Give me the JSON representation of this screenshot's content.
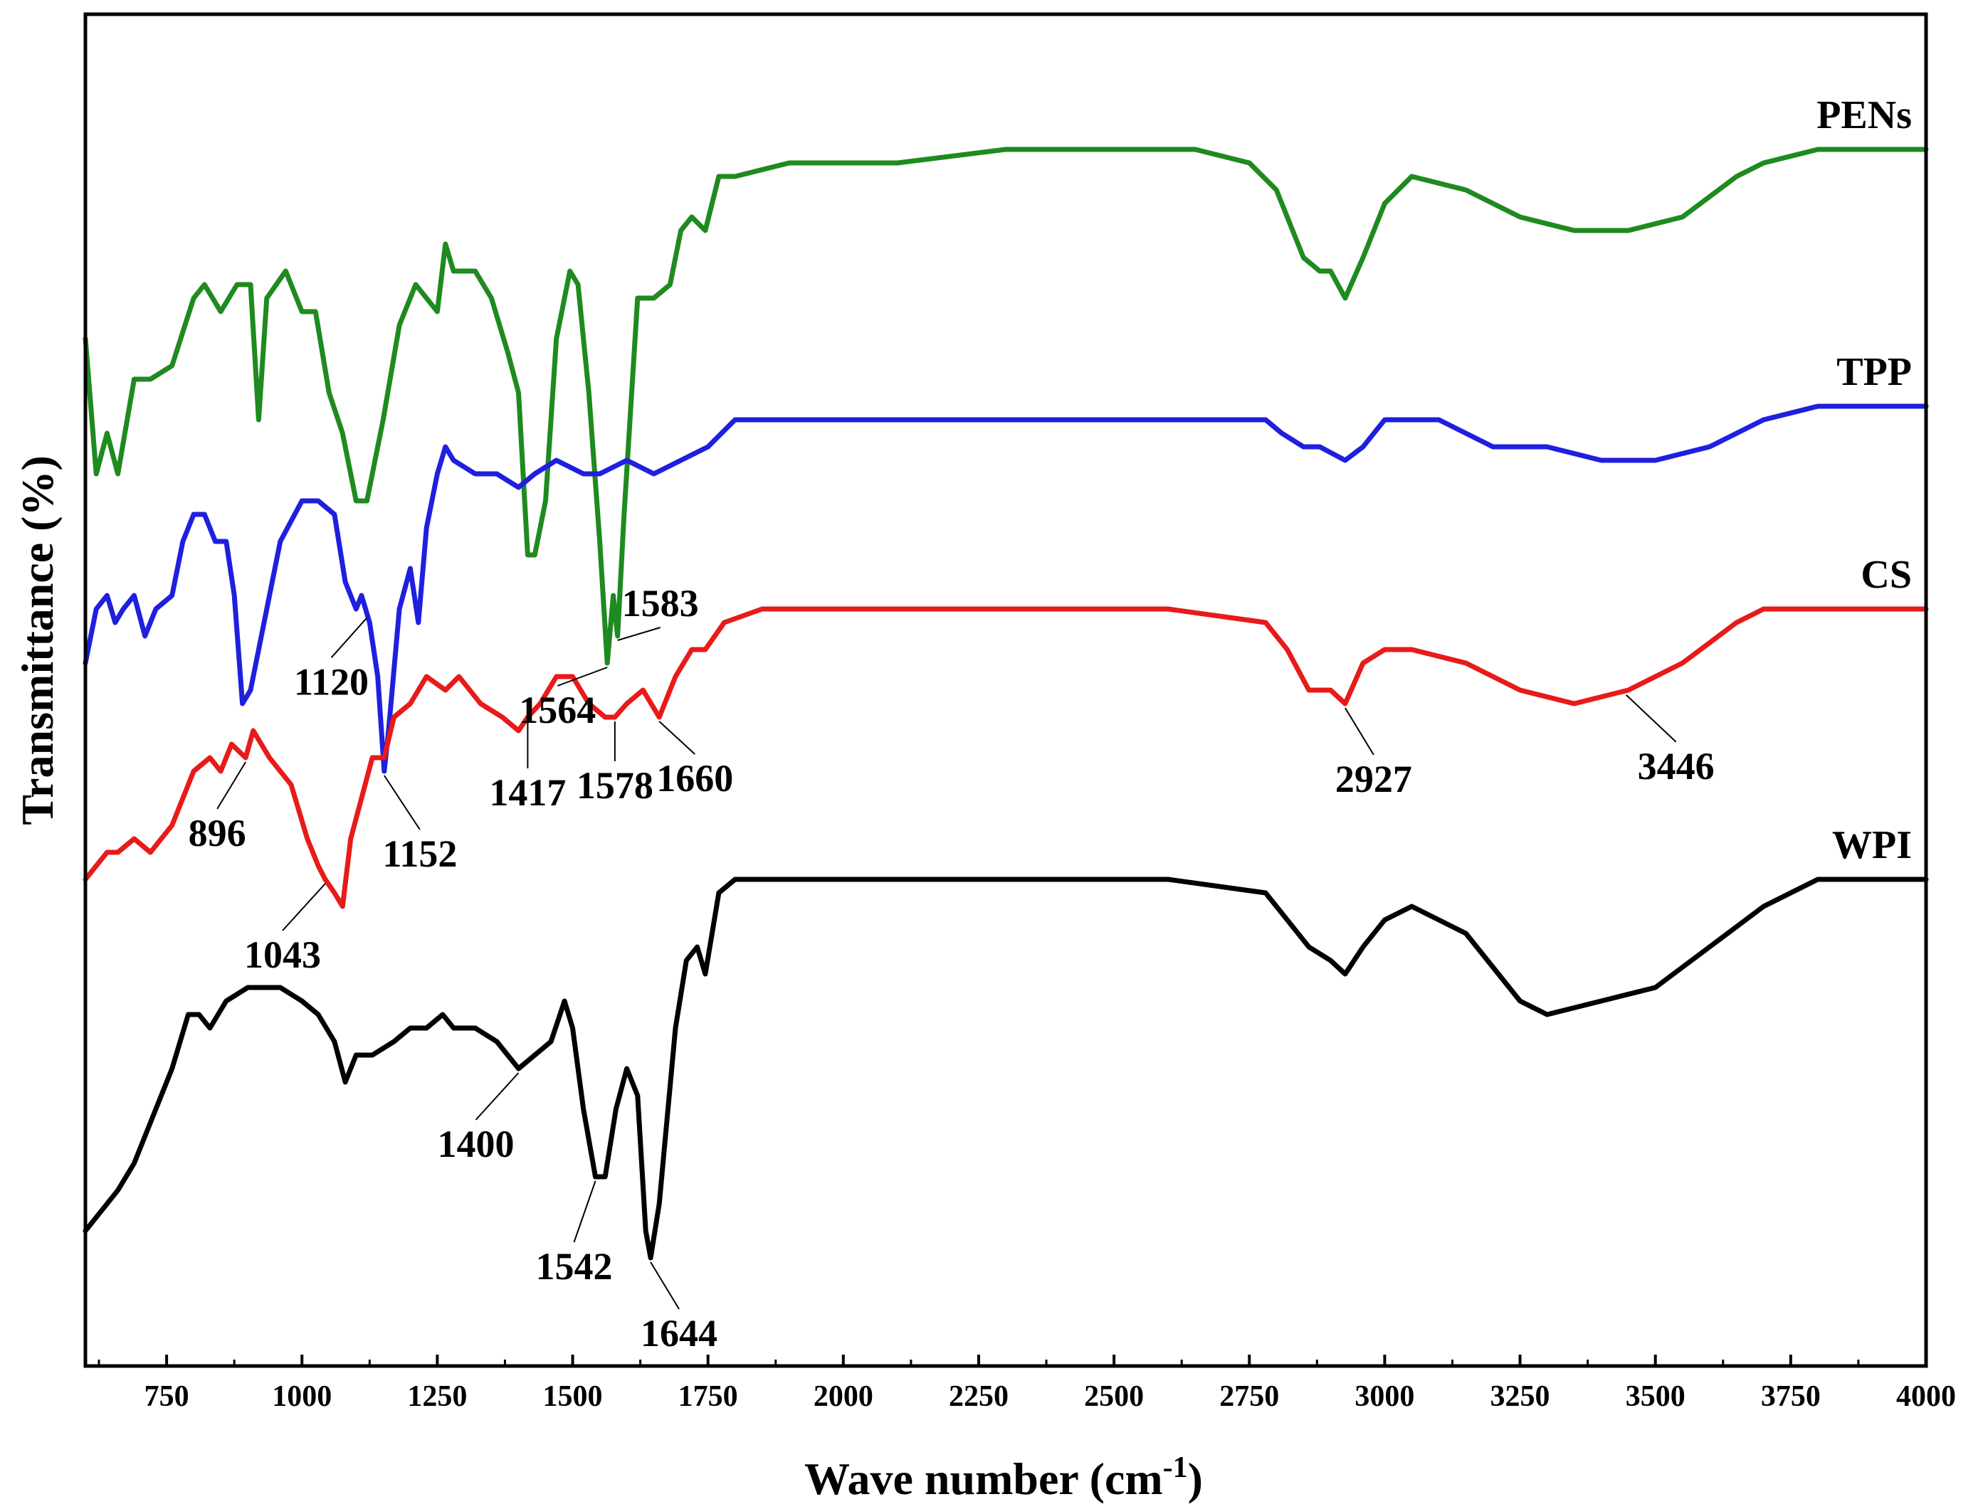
{
  "chart_data": {
    "type": "line",
    "title": "",
    "xlabel": "Wave number (cm",
    "xlabel_sup": "-1",
    "xlabel_close": ")",
    "ylabel": "Transmittance (%)",
    "xlim": [
      600,
      4000
    ],
    "ylim": [
      0,
      100
    ],
    "xticks": [
      "750",
      "1000",
      "1250",
      "1500",
      "1750",
      "2000",
      "2250",
      "2500",
      "2750",
      "3000",
      "3250",
      "3500",
      "3750",
      "4000"
    ],
    "series": [
      {
        "name": "PENs",
        "color": "#1f8a1f",
        "points": [
          [
            600,
            76
          ],
          [
            620,
            66
          ],
          [
            640,
            69
          ],
          [
            660,
            66
          ],
          [
            690,
            73
          ],
          [
            720,
            73
          ],
          [
            760,
            74
          ],
          [
            800,
            79
          ],
          [
            820,
            80
          ],
          [
            850,
            78
          ],
          [
            880,
            80
          ],
          [
            905,
            80
          ],
          [
            920,
            70
          ],
          [
            935,
            79
          ],
          [
            970,
            81
          ],
          [
            1000,
            78
          ],
          [
            1025,
            78
          ],
          [
            1050,
            72
          ],
          [
            1075,
            69
          ],
          [
            1100,
            64
          ],
          [
            1120,
            64
          ],
          [
            1150,
            70
          ],
          [
            1180,
            77
          ],
          [
            1210,
            80
          ],
          [
            1250,
            78
          ],
          [
            1265,
            83
          ],
          [
            1280,
            81
          ],
          [
            1320,
            81
          ],
          [
            1350,
            79
          ],
          [
            1380,
            75
          ],
          [
            1400,
            72
          ],
          [
            1417,
            60
          ],
          [
            1430,
            60
          ],
          [
            1450,
            64
          ],
          [
            1470,
            76
          ],
          [
            1495,
            81
          ],
          [
            1510,
            80
          ],
          [
            1530,
            72
          ],
          [
            1550,
            61
          ],
          [
            1564,
            52
          ],
          [
            1575,
            57
          ],
          [
            1583,
            54
          ],
          [
            1595,
            63
          ],
          [
            1620,
            79
          ],
          [
            1650,
            79
          ],
          [
            1680,
            80
          ],
          [
            1700,
            84
          ],
          [
            1720,
            85
          ],
          [
            1745,
            84
          ],
          [
            1770,
            88
          ],
          [
            1800,
            88
          ],
          [
            1900,
            89
          ],
          [
            2000,
            89
          ],
          [
            2100,
            89
          ],
          [
            2300,
            90
          ],
          [
            2500,
            90
          ],
          [
            2650,
            90
          ],
          [
            2750,
            89
          ],
          [
            2800,
            87
          ],
          [
            2850,
            82
          ],
          [
            2880,
            81
          ],
          [
            2900,
            81
          ],
          [
            2927,
            79
          ],
          [
            2960,
            82
          ],
          [
            3000,
            86
          ],
          [
            3050,
            88
          ],
          [
            3150,
            87
          ],
          [
            3250,
            85
          ],
          [
            3350,
            84
          ],
          [
            3450,
            84
          ],
          [
            3550,
            85
          ],
          [
            3650,
            88
          ],
          [
            3700,
            89
          ],
          [
            3800,
            90
          ],
          [
            3900,
            90
          ],
          [
            4000,
            90
          ]
        ]
      },
      {
        "name": "TPP",
        "color": "#1f1fe0",
        "points": [
          [
            600,
            52
          ],
          [
            620,
            56
          ],
          [
            640,
            57
          ],
          [
            655,
            55
          ],
          [
            670,
            56
          ],
          [
            690,
            57
          ],
          [
            710,
            54
          ],
          [
            730,
            56
          ],
          [
            760,
            57
          ],
          [
            780,
            61
          ],
          [
            800,
            63
          ],
          [
            820,
            63
          ],
          [
            840,
            61
          ],
          [
            860,
            61
          ],
          [
            875,
            57
          ],
          [
            890,
            49
          ],
          [
            905,
            50
          ],
          [
            925,
            54
          ],
          [
            960,
            61
          ],
          [
            1000,
            64
          ],
          [
            1030,
            64
          ],
          [
            1060,
            63
          ],
          [
            1080,
            58
          ],
          [
            1100,
            56
          ],
          [
            1110,
            57
          ],
          [
            1125,
            55
          ],
          [
            1140,
            51
          ],
          [
            1152,
            44
          ],
          [
            1160,
            47
          ],
          [
            1180,
            56
          ],
          [
            1200,
            59
          ],
          [
            1215,
            55
          ],
          [
            1230,
            62
          ],
          [
            1250,
            66
          ],
          [
            1265,
            68
          ],
          [
            1280,
            67
          ],
          [
            1320,
            66
          ],
          [
            1360,
            66
          ],
          [
            1400,
            65
          ],
          [
            1430,
            66
          ],
          [
            1470,
            67
          ],
          [
            1520,
            66
          ],
          [
            1550,
            66
          ],
          [
            1600,
            67
          ],
          [
            1650,
            66
          ],
          [
            1700,
            67
          ],
          [
            1750,
            68
          ],
          [
            1800,
            70
          ],
          [
            2000,
            70
          ],
          [
            2300,
            70
          ],
          [
            2600,
            70
          ],
          [
            2780,
            70
          ],
          [
            2810,
            69
          ],
          [
            2850,
            68
          ],
          [
            2880,
            68
          ],
          [
            2927,
            67
          ],
          [
            2960,
            68
          ],
          [
            3000,
            70
          ],
          [
            3100,
            70
          ],
          [
            3200,
            68
          ],
          [
            3300,
            68
          ],
          [
            3400,
            67
          ],
          [
            3500,
            67
          ],
          [
            3600,
            68
          ],
          [
            3700,
            70
          ],
          [
            3800,
            71
          ],
          [
            3900,
            71
          ],
          [
            4000,
            71
          ]
        ]
      },
      {
        "name": "CS",
        "color": "#e81a1a",
        "points": [
          [
            600,
            36
          ],
          [
            620,
            37
          ],
          [
            640,
            38
          ],
          [
            660,
            38
          ],
          [
            690,
            39
          ],
          [
            720,
            38
          ],
          [
            760,
            40
          ],
          [
            800,
            44
          ],
          [
            830,
            45
          ],
          [
            850,
            44
          ],
          [
            870,
            46
          ],
          [
            896,
            45
          ],
          [
            910,
            47
          ],
          [
            940,
            45
          ],
          [
            980,
            43
          ],
          [
            1010,
            39
          ],
          [
            1030,
            37
          ],
          [
            1043,
            36
          ],
          [
            1060,
            35
          ],
          [
            1075,
            34
          ],
          [
            1090,
            39
          ],
          [
            1110,
            42
          ],
          [
            1130,
            45
          ],
          [
            1152,
            45
          ],
          [
            1170,
            48
          ],
          [
            1200,
            49
          ],
          [
            1230,
            51
          ],
          [
            1265,
            50
          ],
          [
            1290,
            51
          ],
          [
            1330,
            49
          ],
          [
            1370,
            48
          ],
          [
            1400,
            47
          ],
          [
            1417,
            48
          ],
          [
            1440,
            49
          ],
          [
            1470,
            51
          ],
          [
            1500,
            51
          ],
          [
            1530,
            49
          ],
          [
            1560,
            48
          ],
          [
            1578,
            48
          ],
          [
            1600,
            49
          ],
          [
            1630,
            50
          ],
          [
            1660,
            48
          ],
          [
            1690,
            51
          ],
          [
            1720,
            53
          ],
          [
            1745,
            53
          ],
          [
            1780,
            55
          ],
          [
            1850,
            56
          ],
          [
            2000,
            56
          ],
          [
            2300,
            56
          ],
          [
            2600,
            56
          ],
          [
            2780,
            55
          ],
          [
            2820,
            53
          ],
          [
            2860,
            50
          ],
          [
            2900,
            50
          ],
          [
            2927,
            49
          ],
          [
            2960,
            52
          ],
          [
            3000,
            53
          ],
          [
            3050,
            53
          ],
          [
            3150,
            52
          ],
          [
            3250,
            50
          ],
          [
            3350,
            49
          ],
          [
            3450,
            50
          ],
          [
            3550,
            52
          ],
          [
            3650,
            55
          ],
          [
            3700,
            56
          ],
          [
            3800,
            56
          ],
          [
            3900,
            56
          ],
          [
            4000,
            56
          ]
        ]
      },
      {
        "name": "WPI",
        "color": "#000000",
        "points": [
          [
            600,
            10
          ],
          [
            620,
            11
          ],
          [
            640,
            12
          ],
          [
            660,
            13
          ],
          [
            690,
            15
          ],
          [
            720,
            18
          ],
          [
            760,
            22
          ],
          [
            790,
            26
          ],
          [
            810,
            26
          ],
          [
            830,
            25
          ],
          [
            860,
            27
          ],
          [
            900,
            28
          ],
          [
            960,
            28
          ],
          [
            1000,
            27
          ],
          [
            1030,
            26
          ],
          [
            1060,
            24
          ],
          [
            1080,
            21
          ],
          [
            1100,
            23
          ],
          [
            1130,
            23
          ],
          [
            1170,
            24
          ],
          [
            1200,
            25
          ],
          [
            1230,
            25
          ],
          [
            1260,
            26
          ],
          [
            1280,
            25
          ],
          [
            1320,
            25
          ],
          [
            1360,
            24
          ],
          [
            1380,
            23
          ],
          [
            1400,
            22
          ],
          [
            1430,
            23
          ],
          [
            1460,
            24
          ],
          [
            1485,
            27
          ],
          [
            1500,
            25
          ],
          [
            1520,
            19
          ],
          [
            1542,
            14
          ],
          [
            1560,
            14
          ],
          [
            1580,
            19
          ],
          [
            1600,
            22
          ],
          [
            1620,
            20
          ],
          [
            1635,
            10
          ],
          [
            1644,
            8
          ],
          [
            1660,
            12
          ],
          [
            1690,
            25
          ],
          [
            1710,
            30
          ],
          [
            1730,
            31
          ],
          [
            1745,
            29
          ],
          [
            1770,
            35
          ],
          [
            1800,
            36
          ],
          [
            2000,
            36
          ],
          [
            2300,
            36
          ],
          [
            2600,
            36
          ],
          [
            2780,
            35
          ],
          [
            2820,
            33
          ],
          [
            2860,
            31
          ],
          [
            2900,
            30
          ],
          [
            2927,
            29
          ],
          [
            2960,
            31
          ],
          [
            3000,
            33
          ],
          [
            3050,
            34
          ],
          [
            3150,
            32
          ],
          [
            3250,
            27
          ],
          [
            3300,
            26
          ],
          [
            3400,
            27
          ],
          [
            3500,
            28
          ],
          [
            3600,
            31
          ],
          [
            3700,
            34
          ],
          [
            3800,
            36
          ],
          [
            3900,
            36
          ],
          [
            4000,
            36
          ]
        ]
      }
    ],
    "annotations": [
      {
        "text": "1120",
        "x": 1120,
        "series": "TPP"
      },
      {
        "text": "1564",
        "x": 1564,
        "series": "PENs"
      },
      {
        "text": "1583",
        "x": 1583,
        "series": "PENs"
      },
      {
        "text": "896",
        "x": 896,
        "series": "CS"
      },
      {
        "text": "1152",
        "x": 1152,
        "series": "TPP"
      },
      {
        "text": "1043",
        "x": 1043,
        "series": "CS"
      },
      {
        "text": "1417",
        "x": 1417,
        "series": "CS"
      },
      {
        "text": "1578",
        "x": 1578,
        "series": "CS"
      },
      {
        "text": "1660",
        "x": 1660,
        "series": "CS"
      },
      {
        "text": "2927",
        "x": 2927,
        "series": "CS"
      },
      {
        "text": "3446",
        "x": 3446,
        "series": "CS"
      },
      {
        "text": "1400",
        "x": 1400,
        "series": "WPI"
      },
      {
        "text": "1542",
        "x": 1542,
        "series": "WPI"
      },
      {
        "text": "1644",
        "x": 1644,
        "series": "WPI"
      }
    ]
  }
}
